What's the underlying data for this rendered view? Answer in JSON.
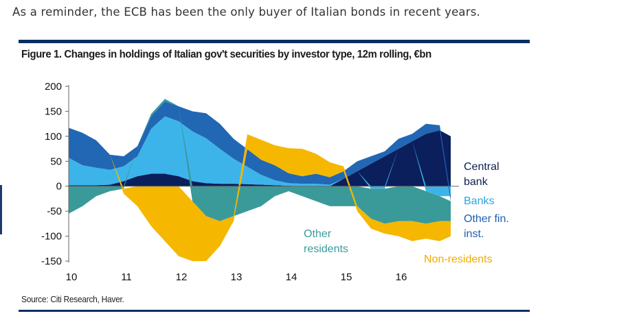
{
  "intro_text": "As a reminder, the ECB has been the only buyer of Italian bonds in recent years.",
  "source": "Source: Citi Research, Haver.",
  "chart_data": {
    "type": "area",
    "stacked": true,
    "title": "Figure 1. Changes in holdings of Italian gov't securities by investor type, 12m rolling, €bn",
    "xlabel": "",
    "ylabel": "",
    "ylim": [
      -150,
      200
    ],
    "yticks": [
      200,
      150,
      100,
      50,
      0,
      -50,
      -100,
      -150
    ],
    "xtick_labels": [
      "10",
      "11",
      "12",
      "13",
      "14",
      "15",
      "16"
    ],
    "x": [
      2010.0,
      2010.25,
      2010.5,
      2010.75,
      2011.0,
      2011.25,
      2011.5,
      2011.75,
      2012.0,
      2012.25,
      2012.5,
      2012.75,
      2013.0,
      2013.25,
      2013.5,
      2013.75,
      2014.0,
      2014.25,
      2014.5,
      2014.75,
      2015.0,
      2015.25,
      2015.5,
      2015.75,
      2016.0,
      2016.25,
      2016.5,
      2016.75,
      2016.95
    ],
    "series": [
      {
        "name": "Central bank",
        "label_lines": [
          "Central",
          "bank"
        ],
        "color": "#0b1f5c",
        "values": [
          2,
          2,
          2,
          3,
          10,
          20,
          25,
          25,
          20,
          10,
          6,
          5,
          5,
          4,
          3,
          2,
          1,
          0,
          0,
          0,
          15,
          30,
          45,
          60,
          75,
          90,
          105,
          112,
          100
        ]
      },
      {
        "name": "Banks",
        "label_lines": [
          "Banks"
        ],
        "color": "#3cb4ea",
        "values": [
          55,
          40,
          35,
          30,
          30,
          40,
          90,
          115,
          110,
          100,
          90,
          70,
          50,
          35,
          20,
          10,
          5,
          5,
          5,
          3,
          0,
          0,
          -5,
          -5,
          0,
          0,
          -10,
          -20,
          -20
        ]
      },
      {
        "name": "Other fin. inst.",
        "label_lines": [
          "Other fin.",
          "inst."
        ],
        "color": "#2167b4",
        "values": [
          60,
          65,
          55,
          30,
          20,
          20,
          25,
          30,
          30,
          40,
          50,
          50,
          40,
          35,
          30,
          30,
          20,
          15,
          20,
          15,
          15,
          20,
          15,
          10,
          20,
          15,
          20,
          10,
          -10
        ]
      },
      {
        "name": "Other residents",
        "label_lines": [
          "Other",
          "residents"
        ],
        "color": "#3a9a9a",
        "values": [
          -55,
          -40,
          -20,
          -10,
          -5,
          0,
          5,
          5,
          0,
          -30,
          -60,
          -70,
          -60,
          -50,
          -40,
          -20,
          -10,
          -20,
          -30,
          -40,
          -40,
          -40,
          -60,
          -70,
          -70,
          -70,
          -65,
          -50,
          -40
        ]
      },
      {
        "name": "Non-residents",
        "label_lines": [
          "Non-residents"
        ],
        "color": "#f5b700",
        "values": [
          0,
          0,
          0,
          0,
          -10,
          -40,
          -80,
          -110,
          -140,
          -120,
          -90,
          -50,
          -10,
          30,
          40,
          40,
          50,
          55,
          40,
          30,
          10,
          -10,
          -20,
          -20,
          -30,
          -40,
          -30,
          -40,
          -30
        ]
      }
    ],
    "text_colors": {
      "Central bank": "#0d1f4e",
      "Banks": "#2aa4e0",
      "Other fin. inst.": "#1f5fae",
      "Other residents": "#3a9a9a",
      "Non-residents": "#f0ac00"
    }
  }
}
